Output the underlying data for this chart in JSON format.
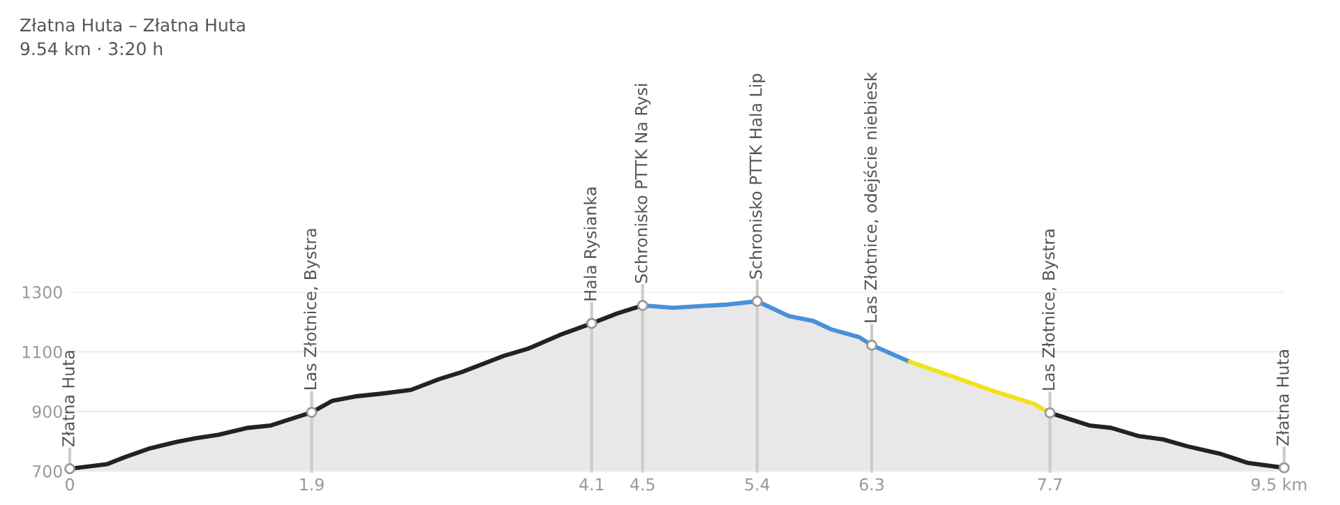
{
  "chart_data": {
    "type": "area",
    "title": "Złatna Huta – Złatna Huta",
    "subtitle": "9.54 km · 3:20 h",
    "series": [
      {
        "color": "#222222",
        "x": [
          0,
          0.29,
          0.44,
          0.62,
          0.84,
          0.99,
          1.17,
          1.4,
          1.58,
          1.9,
          2.06,
          2.24,
          2.46,
          2.68,
          2.9,
          3.08,
          3.41,
          3.6,
          3.85,
          4.1,
          4.3,
          4.5
        ],
        "values": [
          708,
          723,
          748,
          775,
          798,
          810,
          822,
          845,
          853,
          897,
          935,
          950,
          960,
          972,
          1008,
          1032,
          1086,
          1110,
          1156,
          1195,
          1228,
          1255
        ]
      },
      {
        "color": "#4a90d9",
        "x": [
          4.5,
          4.74,
          4.96,
          5.17,
          5.4,
          5.65,
          5.84,
          5.98,
          6.2,
          6.3,
          6.6
        ],
        "values": [
          1255,
          1247,
          1253,
          1258,
          1269,
          1219,
          1203,
          1175,
          1149,
          1122,
          1066
        ]
      },
      {
        "color": "#f2e21c",
        "x": [
          6.6,
          6.94,
          7.3,
          7.57,
          7.7
        ],
        "values": [
          1066,
          1016,
          962,
          926,
          895
        ]
      },
      {
        "color": "#222222",
        "x": [
          7.7,
          8.01,
          8.18,
          8.4,
          8.59,
          8.78,
          9.03,
          9.25,
          9.54
        ],
        "values": [
          895,
          853,
          845,
          817,
          806,
          783,
          759,
          728,
          711
        ]
      },
      {
        "type": "scatter",
        "color": "#999999",
        "marker": "circle",
        "x": [
          0,
          1.9,
          4.1,
          4.5,
          5.4,
          6.3,
          7.7,
          9.54
        ],
        "values": [
          708,
          897,
          1195,
          1255,
          1269,
          1122,
          895,
          711
        ]
      }
    ],
    "ref_lines": [
      {
        "axis": "x",
        "value": 0,
        "label": "Złatna Huta"
      },
      {
        "axis": "x",
        "value": 1.9,
        "label": "Las Złotnice, Bystra"
      },
      {
        "axis": "x",
        "value": 4.1,
        "label": "Hala Rysianka"
      },
      {
        "axis": "x",
        "value": 4.5,
        "label": "Schronisko PTTK Na Rysi"
      },
      {
        "axis": "x",
        "value": 5.4,
        "label": "Schronisko PTTK Hala Lip"
      },
      {
        "axis": "x",
        "value": 6.3,
        "label": "Las Złotnice, odejście niebiesk"
      },
      {
        "axis": "x",
        "value": 7.7,
        "label": "Las Złotnice, Bystra"
      },
      {
        "axis": "x",
        "value": 9.54,
        "label": "Złatna Huta"
      }
    ],
    "xlim": [
      0,
      9.54
    ],
    "xticks": [
      0,
      1.9,
      4.1,
      4.5,
      5.4,
      6.3,
      7.7,
      {
        "value": 9.5,
        "label": "9.5 km"
      }
    ],
    "ylim": [
      700,
      1300
    ],
    "yticks": [
      700,
      900,
      1100,
      1300
    ],
    "grid": "y"
  }
}
